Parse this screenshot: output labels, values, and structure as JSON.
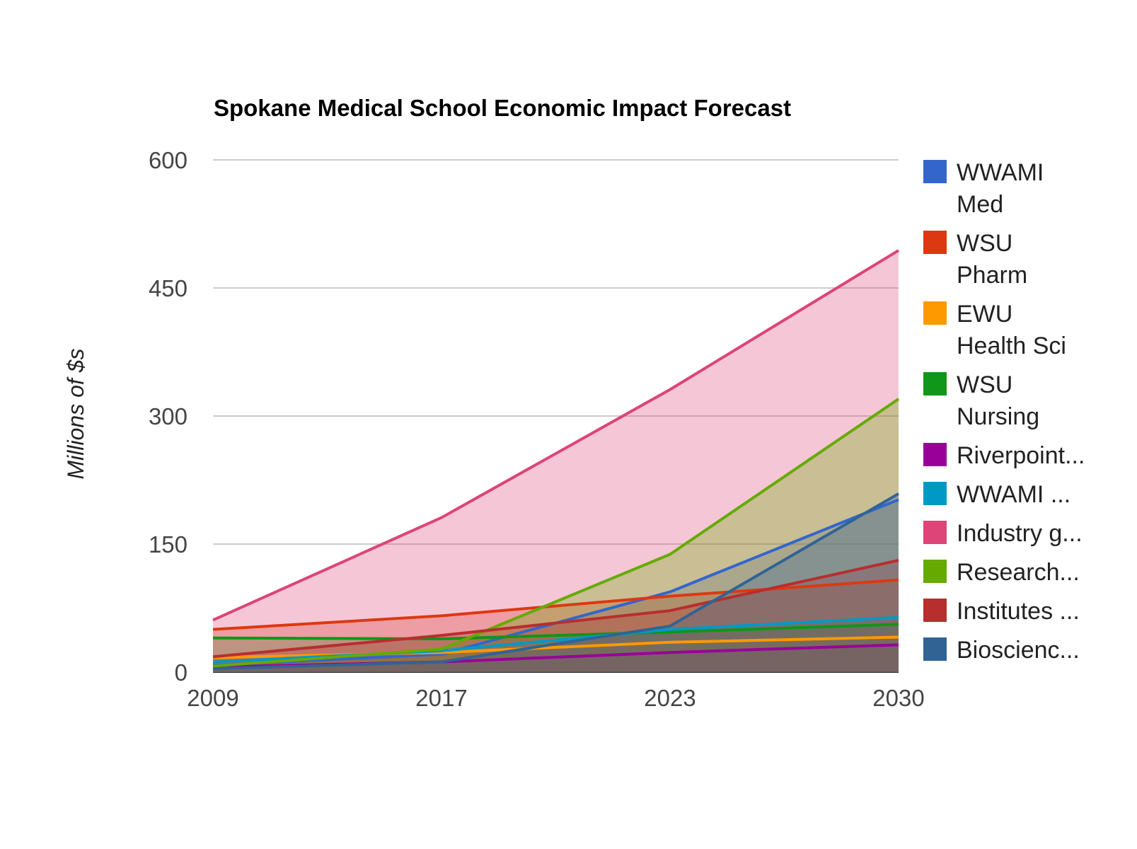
{
  "chart_data": {
    "type": "area",
    "title": "Spokane Medical School Economic Impact Forecast",
    "xlabel": "",
    "ylabel": "Millions of $s",
    "categories": [
      "2009",
      "2017",
      "2023",
      "2030"
    ],
    "ylim": [
      0,
      600
    ],
    "yticks": [
      "0",
      "150",
      "300",
      "450",
      "600"
    ],
    "grid": true,
    "legend_position": "right",
    "series": [
      {
        "name": "WWAMI Med",
        "legend_label": "WWAMI Med",
        "color": "#3366cc",
        "values": [
          8,
          21,
          94,
          202
        ]
      },
      {
        "name": "WSU Pharm",
        "legend_label": "WSU Pharm",
        "color": "#dc3912",
        "values": [
          50,
          66,
          89,
          108
        ]
      },
      {
        "name": "EWU Health Sci",
        "legend_label": "EWU Health Sci",
        "color": "#ff9900",
        "values": [
          17,
          23,
          35,
          41
        ]
      },
      {
        "name": "WSU Nursing",
        "legend_label": "WSU Nursing",
        "color": "#109618",
        "values": [
          40,
          39,
          47,
          56
        ]
      },
      {
        "name": "Riverpoint...",
        "legend_label": "Riverpoint...",
        "color": "#990099",
        "values": [
          6,
          12,
          23,
          32
        ]
      },
      {
        "name": "WWAMI ...",
        "legend_label": "WWAMI ...",
        "color": "#0099c6",
        "values": [
          12,
          25,
          50,
          64
        ]
      },
      {
        "name": "Industry g...",
        "legend_label": "Industry g...",
        "color": "#dd4477",
        "values": [
          61,
          181,
          331,
          494
        ]
      },
      {
        "name": "Research...",
        "legend_label": "Research...",
        "color": "#66aa00",
        "values": [
          7,
          27,
          138,
          320
        ]
      },
      {
        "name": "Institutes ...",
        "legend_label": "Institutes ...",
        "color": "#b82e2e",
        "values": [
          18,
          43,
          72,
          131
        ]
      },
      {
        "name": "Bioscienc...",
        "legend_label": "Bioscienc...",
        "color": "#316395",
        "values": [
          4,
          12,
          54,
          209
        ]
      }
    ]
  }
}
